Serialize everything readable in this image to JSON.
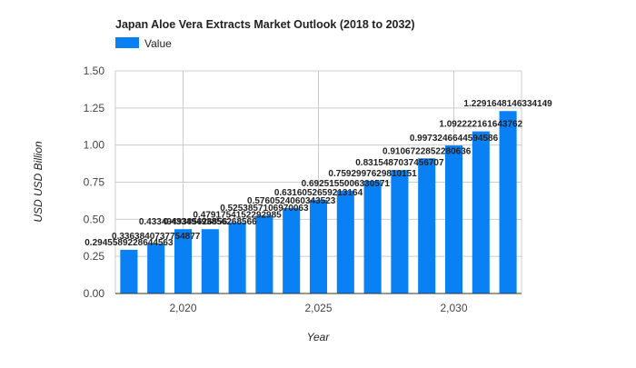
{
  "chart_data": {
    "type": "bar",
    "title": "Japan Aloe Vera Extracts Market Outlook (2018 to 2032)",
    "xlabel": "Year",
    "ylabel": "USD USD Billion",
    "ylim": [
      0,
      1.5
    ],
    "xlim": [
      2017.5,
      2032.5
    ],
    "yticks": [
      "0.00",
      "0.25",
      "0.50",
      "0.75",
      "1.00",
      "1.25",
      "1.50"
    ],
    "yticks_values": [
      0,
      0.25,
      0.5,
      0.75,
      1.0,
      1.25,
      1.5
    ],
    "xticks": [
      "2,020",
      "2,025",
      "2,030"
    ],
    "xticks_values": [
      2020,
      2025,
      2030
    ],
    "grid": true,
    "legend_position": "top-left",
    "colors": {
      "bar": "#0a80f5",
      "grid": "#cccccc",
      "axis": "#333333",
      "text": "#222222"
    },
    "x": [
      2018,
      2019,
      2020,
      2021,
      2022,
      2023,
      2024,
      2025,
      2026,
      2027,
      2028,
      2029,
      2030,
      2031,
      2032
    ],
    "series": [
      {
        "name": "Value",
        "values": [
          0.2945589228644563,
          0.3363840737754877,
          0.4334949385626856,
          0.43349493856268567,
          0.4791754152292985,
          0.5253857106970063,
          0.5760524060343523,
          0.6316052659213164,
          0.6925155006330571,
          0.7592997629810151,
          0.8315487037456707,
          0.9106722852280636,
          0.9973246644594586,
          1.092222161643762,
          1.2291648146334149
        ],
        "labels": [
          "0.2945589228644563",
          "0.3363840737754877",
          "0.4334949385626856",
          "0.43349493856268566",
          "0.4791754152292985",
          "0.5253857106970063",
          "0.5760524060343523",
          "0.6316052659213164",
          "0.6925155006330571",
          "0.7592997629810151",
          "0.8315487037456707",
          "0.9106722852280636",
          "0.9973246644594586",
          "1.092222161643762",
          "1.2291648146334149"
        ]
      }
    ]
  }
}
